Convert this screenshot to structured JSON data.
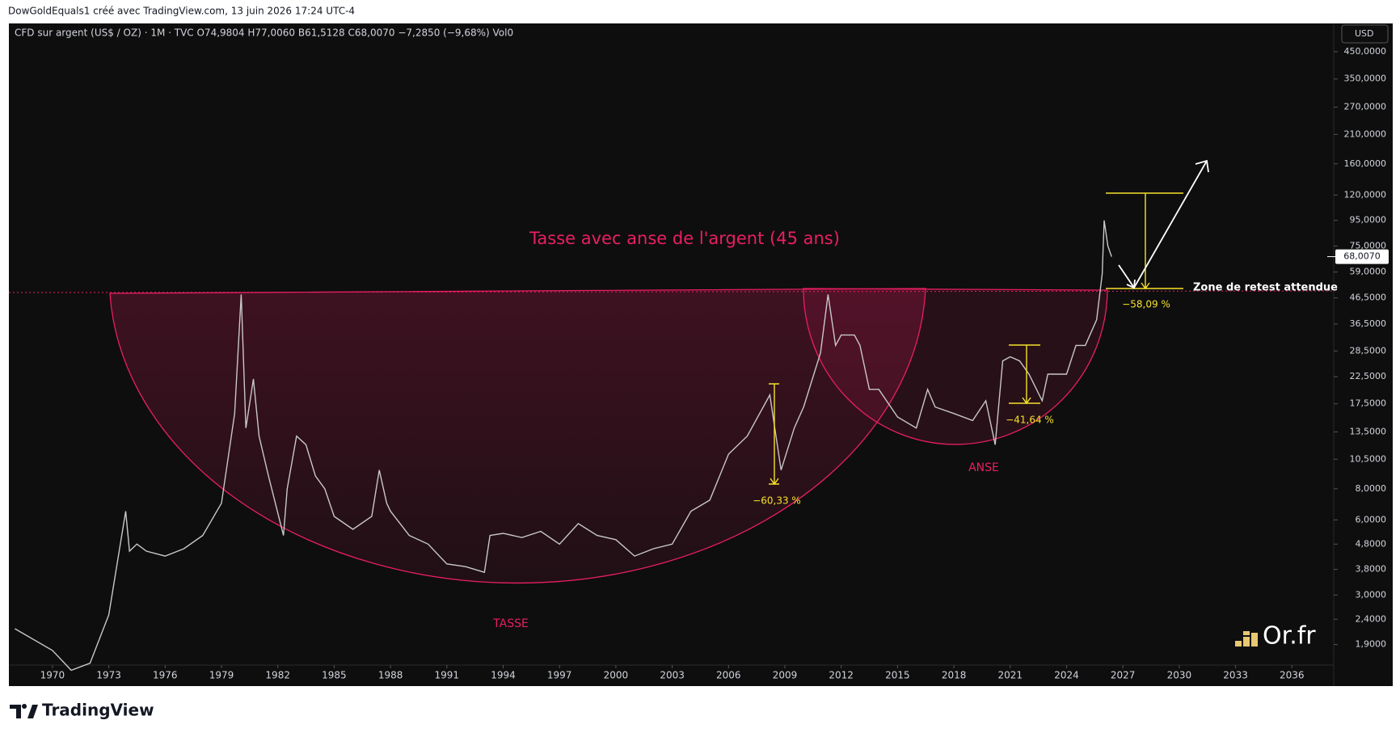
{
  "header": {
    "credit": "DowGoldEquals1 créé avec TradingView.com, 13 juin 2026 17:24 UTC-4",
    "symbol_line": "CFD sur argent (US$ / OZ) · 1M · TVC  O74,9804  H77,0060  B61,5128  C68,0070  −7,2850 (−9,68%)  Vol0",
    "currency": "USD"
  },
  "chart_data": {
    "type": "line",
    "title": "Tasse avec anse de l'argent (45 ans)",
    "log_scale": true,
    "grid": false,
    "color": "#c8c8c8",
    "x": [
      1968,
      1970,
      1971,
      1972,
      1973,
      1973.9,
      1974.1,
      1974.5,
      1975,
      1976,
      1977,
      1978,
      1979,
      1979.7,
      1980.05,
      1980.3,
      1980.7,
      1981,
      1981.5,
      1982.3,
      1982.5,
      1983,
      1983.5,
      1984,
      1984.5,
      1985,
      1986,
      1987,
      1987.4,
      1987.8,
      1988,
      1989,
      1990,
      1991,
      1992,
      1993,
      1993.3,
      1994,
      1995,
      1996,
      1997,
      1998,
      1999,
      2000,
      2001,
      2002,
      2003,
      2004,
      2005,
      2006,
      2007,
      2008.2,
      2008.8,
      2009.5,
      2010,
      2010.9,
      2011.3,
      2011.7,
      2012,
      2012.7,
      2013,
      2013.5,
      2014,
      2015,
      2016,
      2016.6,
      2017,
      2018,
      2019,
      2019.7,
      2020.2,
      2020.6,
      2021,
      2021.5,
      2022,
      2022.7,
      2023,
      2024,
      2024.5,
      2025,
      2025.6,
      2025.9,
      2026,
      2026.2,
      2026.4
    ],
    "values": [
      2.2,
      1.8,
      1.5,
      1.6,
      2.5,
      6.5,
      4.5,
      4.8,
      4.5,
      4.3,
      4.6,
      5.2,
      7,
      16,
      48,
      14,
      22,
      13,
      9,
      5.2,
      8,
      13,
      12,
      9,
      8,
      6.2,
      5.5,
      6.2,
      9.5,
      7,
      6.5,
      5.2,
      4.8,
      4,
      3.9,
      3.7,
      5.2,
      5.3,
      5.1,
      5.4,
      4.8,
      5.8,
      5.2,
      5,
      4.3,
      4.6,
      4.8,
      6.5,
      7.2,
      11,
      13,
      19,
      9.5,
      14,
      17,
      28,
      48,
      30,
      33,
      33,
      30,
      20,
      20,
      15.5,
      14,
      20,
      17,
      16,
      15,
      18,
      12,
      26,
      27,
      26,
      23,
      18,
      23,
      23,
      30,
      30,
      38,
      58,
      95,
      75,
      68.007
    ],
    "xlim": [
      1967.68,
      2038.14
    ],
    "xticks": [
      1970,
      1973,
      1976,
      1979,
      1982,
      1985,
      1988,
      1991,
      1994,
      1997,
      2000,
      2003,
      2006,
      2009,
      2012,
      2015,
      2018,
      2021,
      2024,
      2027,
      2030,
      2033,
      2036
    ],
    "ylim": [
      1.573,
      567
    ],
    "yticks": [
      {
        "value": 1.9,
        "label": "1,9000"
      },
      {
        "value": 2.4,
        "label": "2,4000"
      },
      {
        "value": 3,
        "label": "3,0000"
      },
      {
        "value": 3.8,
        "label": "3,8000"
      },
      {
        "value": 4.8,
        "label": "4,8000"
      },
      {
        "value": 6,
        "label": "6,0000"
      },
      {
        "value": 8,
        "label": "8,0000"
      },
      {
        "value": 10.5,
        "label": "10,5000"
      },
      {
        "value": 13.5,
        "label": "13,5000"
      },
      {
        "value": 17.5,
        "label": "17,5000"
      },
      {
        "value": 22.5,
        "label": "22,5000"
      },
      {
        "value": 28.5,
        "label": "28,5000"
      },
      {
        "value": 36.5,
        "label": "36,5000"
      },
      {
        "value": 46.5,
        "label": "46,5000"
      },
      {
        "value": 59,
        "label": "59,0000"
      },
      {
        "value": 75,
        "label": "75,0000"
      },
      {
        "value": 95,
        "label": "95,0000"
      },
      {
        "value": 120,
        "label": "120,0000"
      },
      {
        "value": 160,
        "label": "160,0000"
      },
      {
        "value": 210,
        "label": "210,0000"
      },
      {
        "value": 270,
        "label": "270,0000"
      },
      {
        "value": 350,
        "label": "350,0000"
      },
      {
        "value": 450,
        "label": "450,0000"
      }
    ],
    "last_price": {
      "value": 68.007,
      "label": "68,0070"
    },
    "annotations": {
      "cup": "TASSE",
      "handle": "ANSE",
      "drop_2008": "−60,33 %",
      "drop_2021": "−41,64 %",
      "drop_2026": "−58,09 %",
      "retest": "Zone de retest attendue"
    }
  },
  "footer": {
    "brand": "TradingView",
    "watermark": "Or.fr"
  }
}
